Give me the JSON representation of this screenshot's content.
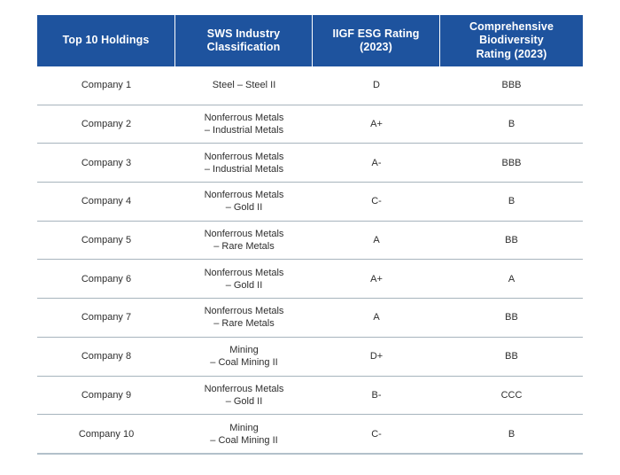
{
  "colors": {
    "header_bg": "#1e539e",
    "header_text": "#ffffff",
    "body_text": "#2e2e2e",
    "row_divider": "#a7b4bd",
    "bottom_border": "#b2c0ca",
    "page_bg": "#ffffff"
  },
  "table": {
    "header": [
      {
        "label": "Top 10 Holdings",
        "lines": [
          "Top 10 Holdings"
        ]
      },
      {
        "label": "SWS Industry Classification",
        "lines": [
          "SWS Industry",
          "Classification"
        ]
      },
      {
        "label": "IIGF ESG Rating (2023)",
        "lines": [
          "IIGF ESG Rating",
          "(2023)"
        ]
      },
      {
        "label": "Comprehensive Biodiversity Rating (2023)",
        "lines": [
          "Comprehensive",
          "Biodiversity",
          "Rating (2023)"
        ]
      }
    ],
    "rows": [
      {
        "holding": "Company 1",
        "classification": [
          "Steel – Steel II"
        ],
        "esg_rating": "D",
        "biodiversity_rating": "BBB"
      },
      {
        "holding": "Company 2",
        "classification": [
          "Nonferrous Metals",
          "– Industrial Metals"
        ],
        "esg_rating": "A+",
        "biodiversity_rating": "B"
      },
      {
        "holding": "Company 3",
        "classification": [
          "Nonferrous Metals",
          "– Industrial Metals"
        ],
        "esg_rating": "A-",
        "biodiversity_rating": "BBB"
      },
      {
        "holding": "Company 4",
        "classification": [
          "Nonferrous Metals",
          "– Gold II"
        ],
        "esg_rating": "C-",
        "biodiversity_rating": "B"
      },
      {
        "holding": "Company 5",
        "classification": [
          "Nonferrous Metals",
          "– Rare Metals"
        ],
        "esg_rating": "A",
        "biodiversity_rating": "BB"
      },
      {
        "holding": "Company 6",
        "classification": [
          "Nonferrous Metals",
          "– Gold II"
        ],
        "esg_rating": "A+",
        "biodiversity_rating": "A"
      },
      {
        "holding": "Company 7",
        "classification": [
          "Nonferrous Metals",
          "– Rare Metals"
        ],
        "esg_rating": "A",
        "biodiversity_rating": "BB"
      },
      {
        "holding": "Company 8",
        "classification": [
          "Mining",
          "– Coal Mining II"
        ],
        "esg_rating": "D+",
        "biodiversity_rating": "BB"
      },
      {
        "holding": "Company 9",
        "classification": [
          "Nonferrous Metals",
          "– Gold II"
        ],
        "esg_rating": "B-",
        "biodiversity_rating": "CCC"
      },
      {
        "holding": "Company 10",
        "classification": [
          "Mining",
          "– Coal Mining II"
        ],
        "esg_rating": "C-",
        "biodiversity_rating": "B"
      }
    ]
  }
}
